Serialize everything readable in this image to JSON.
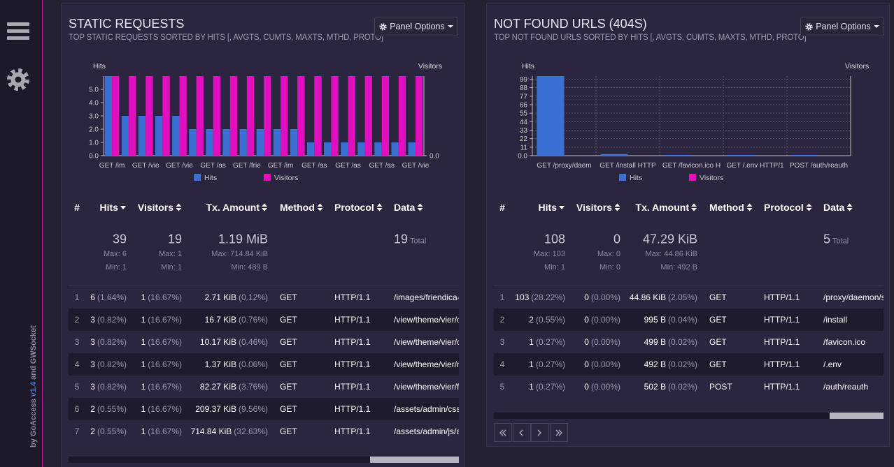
{
  "sidebar": {
    "credit": [
      "by GoAccess",
      "v1.4",
      "and",
      "GWSocket"
    ]
  },
  "chart_data": [
    {
      "type": "bar",
      "y_label": "Hits",
      "y2_label": "Visitors",
      "categories": [
        "GET /im",
        null,
        "GET /vie",
        null,
        "GET /vie",
        null,
        "GET /as",
        null,
        "GET /frie",
        null,
        "GET /im",
        null,
        "GET /as",
        null,
        "GET /as",
        null,
        "GET /as",
        null,
        "GET /vie"
      ],
      "series": [
        {
          "name": "Hits",
          "color": "#3b6fd4",
          "values": [
            6,
            3,
            3,
            3,
            3,
            2,
            2,
            2,
            2,
            2,
            2,
            2,
            1,
            1,
            1,
            1,
            1,
            1,
            1
          ]
        },
        {
          "name": "Visitors",
          "color": "#e00fbf",
          "axis": "y2",
          "values": [
            1,
            1,
            1,
            1,
            1,
            1,
            1,
            1,
            1,
            1,
            1,
            1,
            1,
            1,
            1,
            1,
            1,
            1,
            1
          ]
        }
      ],
      "ylim": [
        0,
        6
      ],
      "yticks": [
        {
          "value": 0,
          "label": "0.0"
        },
        {
          "value": 1,
          "label": "1.0"
        },
        {
          "value": 2,
          "label": "2.0"
        },
        {
          "value": 3,
          "label": "3.0"
        },
        {
          "value": 4,
          "label": "4.0"
        },
        {
          "value": 5,
          "label": "5.0"
        }
      ],
      "y2lim": [
        0,
        1
      ],
      "y2ticks": [
        {
          "value": 0,
          "label": "0.0"
        }
      ],
      "grid": false
    },
    {
      "type": "bar",
      "y_label": "Hits",
      "y2_label": "Visitors",
      "categories": [
        "GET /proxy/daem",
        "GET /install HTTP",
        "GET /favicon.ico H",
        "GET /.env HTTP/1",
        "POST /auth/reauth"
      ],
      "series": [
        {
          "name": "Hits",
          "color": "#3b6fd4",
          "values": [
            103,
            2,
            1,
            1,
            1
          ]
        },
        {
          "name": "Visitors",
          "color": "#e00fbf",
          "axis": "y2",
          "values": [
            0,
            0,
            0,
            0,
            0
          ]
        }
      ],
      "ylim": [
        0,
        103
      ],
      "yticks": [
        {
          "value": 0,
          "label": "0.0"
        },
        11,
        22,
        33,
        44,
        55,
        66,
        77,
        88,
        99
      ],
      "grid": true
    }
  ],
  "panels": [
    {
      "title": "STATIC REQUESTS",
      "subtitle": "TOP STATIC REQUESTS SORTED BY HITS [, AVGTS, CUMTS, MAXTS, MTHD, PROTO]",
      "options_button": "Panel Options",
      "table": {
        "columns": [
          "#",
          "Hits",
          "Visitors",
          "Tx. Amount",
          "Method",
          "Protocol",
          "Data"
        ],
        "summary": {
          "hits": {
            "total": "39",
            "max": "Max: 6",
            "min": "Min: 1"
          },
          "visitors": {
            "total": "19",
            "max": "Max: 1",
            "min": "Min: 1"
          },
          "tx": {
            "total": "1.19 MiB",
            "max": "Max: 714.84 KiB",
            "min": "Min: 489 B"
          },
          "data": {
            "total": "19",
            "label": "Total"
          }
        },
        "rows": [
          {
            "index": "1",
            "hits": "6",
            "hits_pct": "(1.64%)",
            "visitors": "1",
            "visitors_pct": "(16.67%)",
            "tx": "2.71 KiB",
            "tx_pct": "(0.12%)",
            "method": "GET",
            "protocol": "HTTP/1.1",
            "data": "/images/friendica-"
          },
          {
            "index": "2",
            "hits": "3",
            "hits_pct": "(0.82%)",
            "visitors": "1",
            "visitors_pct": "(16.67%)",
            "tx": "16.7 KiB",
            "tx_pct": "(0.76%)",
            "method": "GET",
            "protocol": "HTTP/1.1",
            "data": "/view/theme/vier/c"
          },
          {
            "index": "3",
            "hits": "3",
            "hits_pct": "(0.82%)",
            "visitors": "1",
            "visitors_pct": "(16.67%)",
            "tx": "10.17 KiB",
            "tx_pct": "(0.46%)",
            "method": "GET",
            "protocol": "HTTP/1.1",
            "data": "/view/theme/vier/c"
          },
          {
            "index": "4",
            "hits": "3",
            "hits_pct": "(0.82%)",
            "visitors": "1",
            "visitors_pct": "(16.67%)",
            "tx": "1.37 KiB",
            "tx_pct": "(0.06%)",
            "method": "GET",
            "protocol": "HTTP/1.1",
            "data": "/view/theme/vier/n"
          },
          {
            "index": "5",
            "hits": "3",
            "hits_pct": "(0.82%)",
            "visitors": "1",
            "visitors_pct": "(16.67%)",
            "tx": "82.27 KiB",
            "tx_pct": "(3.76%)",
            "method": "GET",
            "protocol": "HTTP/1.1",
            "data": "/view/theme/vier/fe"
          },
          {
            "index": "6",
            "hits": "2",
            "hits_pct": "(0.55%)",
            "visitors": "1",
            "visitors_pct": "(16.67%)",
            "tx": "209.37 KiB",
            "tx_pct": "(9.56%)",
            "method": "GET",
            "protocol": "HTTP/1.1",
            "data": "/assets/admin/css"
          },
          {
            "index": "7",
            "hits": "2",
            "hits_pct": "(0.55%)",
            "visitors": "1",
            "visitors_pct": "(16.67%)",
            "tx": "714.84 KiB",
            "tx_pct": "(32.63%)",
            "method": "GET",
            "protocol": "HTTP/1.1",
            "data": "/assets/admin/js/a"
          }
        ]
      }
    },
    {
      "title": "NOT FOUND URLS (404S)",
      "subtitle": "TOP NOT FOUND URLS SORTED BY HITS [, AVGTS, CUMTS, MAXTS, MTHD, PROTO]",
      "options_button": "Panel Options",
      "table": {
        "columns": [
          "#",
          "Hits",
          "Visitors",
          "Tx. Amount",
          "Method",
          "Protocol",
          "Data"
        ],
        "summary": {
          "hits": {
            "total": "108",
            "max": "Max: 103",
            "min": "Min: 1"
          },
          "visitors": {
            "total": "0",
            "max": "Max: 0",
            "min": "Min: 0"
          },
          "tx": {
            "total": "47.29 KiB",
            "max": "Max: 44.86 KiB",
            "min": "Min: 492 B"
          },
          "data": {
            "total": "5",
            "label": "Total"
          }
        },
        "rows": [
          {
            "index": "1",
            "hits": "103",
            "hits_pct": "(28.22%)",
            "visitors": "0",
            "visitors_pct": "(0.00%)",
            "tx": "44.86 KiB",
            "tx_pct": "(2.05%)",
            "method": "GET",
            "protocol": "HTTP/1.1",
            "data": "/proxy/daemon/s"
          },
          {
            "index": "2",
            "hits": "2",
            "hits_pct": "(0.55%)",
            "visitors": "0",
            "visitors_pct": "(0.00%)",
            "tx": "995 B",
            "tx_pct": "(0.04%)",
            "method": "GET",
            "protocol": "HTTP/1.1",
            "data": "/install"
          },
          {
            "index": "3",
            "hits": "1",
            "hits_pct": "(0.27%)",
            "visitors": "0",
            "visitors_pct": "(0.00%)",
            "tx": "499 B",
            "tx_pct": "(0.02%)",
            "method": "GET",
            "protocol": "HTTP/1.1",
            "data": "/favicon.ico"
          },
          {
            "index": "4",
            "hits": "1",
            "hits_pct": "(0.27%)",
            "visitors": "0",
            "visitors_pct": "(0.00%)",
            "tx": "492 B",
            "tx_pct": "(0.02%)",
            "method": "GET",
            "protocol": "HTTP/1.1",
            "data": "/.env"
          },
          {
            "index": "5",
            "hits": "1",
            "hits_pct": "(0.27%)",
            "visitors": "0",
            "visitors_pct": "(0.00%)",
            "tx": "502 B",
            "tx_pct": "(0.02%)",
            "method": "POST",
            "protocol": "HTTP/1.1",
            "data": "/auth/reauth"
          }
        ]
      }
    }
  ]
}
